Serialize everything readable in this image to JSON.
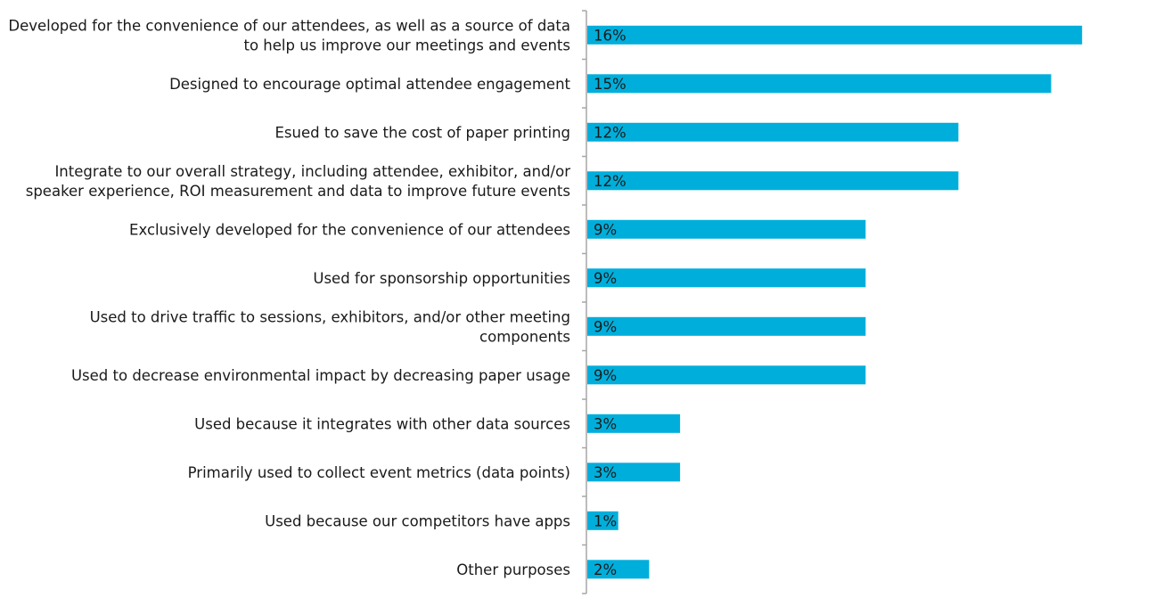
{
  "chart_data": {
    "type": "bar",
    "orientation": "horizontal",
    "title": "",
    "xlabel": "",
    "ylabel": "",
    "categories": [
      [
        "Developed for the convenience of our attendees, as well as a source of data",
        "to help us improve our meetings and events"
      ],
      [
        "Designed to encourage optimal attendee engagement"
      ],
      [
        "Esued to save the cost of paper printing"
      ],
      [
        "Integrate to our overall strategy, including attendee, exhibitor, and/or",
        "speaker experience, ROI measurement and data to improve future events"
      ],
      [
        "Exclusively developed for the convenience of our attendees"
      ],
      [
        "Used for sponsorship opportunities"
      ],
      [
        "Used to drive traffic to sessions, exhibitors, and/or other meeting",
        "components"
      ],
      [
        "Used to decrease environmental impact by decreasing paper usage"
      ],
      [
        "Used because it integrates with other data sources"
      ],
      [
        "Primarily used to collect event metrics (data points)"
      ],
      [
        "Used because our competitors have apps"
      ],
      [
        "Other purposes"
      ]
    ],
    "values": [
      16,
      15,
      12,
      12,
      9,
      9,
      9,
      9,
      3,
      3,
      1,
      2
    ],
    "value_labels": [
      "16%",
      "15%",
      "12%",
      "12%",
      "9%",
      "9%",
      "9%",
      "9%",
      "3%",
      "3%",
      "1%",
      "2%"
    ],
    "unit": "%",
    "xlim": [
      0,
      18
    ],
    "grid": false,
    "legend": "none",
    "colors": {
      "bar": "#00AEDB",
      "axis": "#a6a6a6",
      "text": "#1a1a1a"
    }
  }
}
